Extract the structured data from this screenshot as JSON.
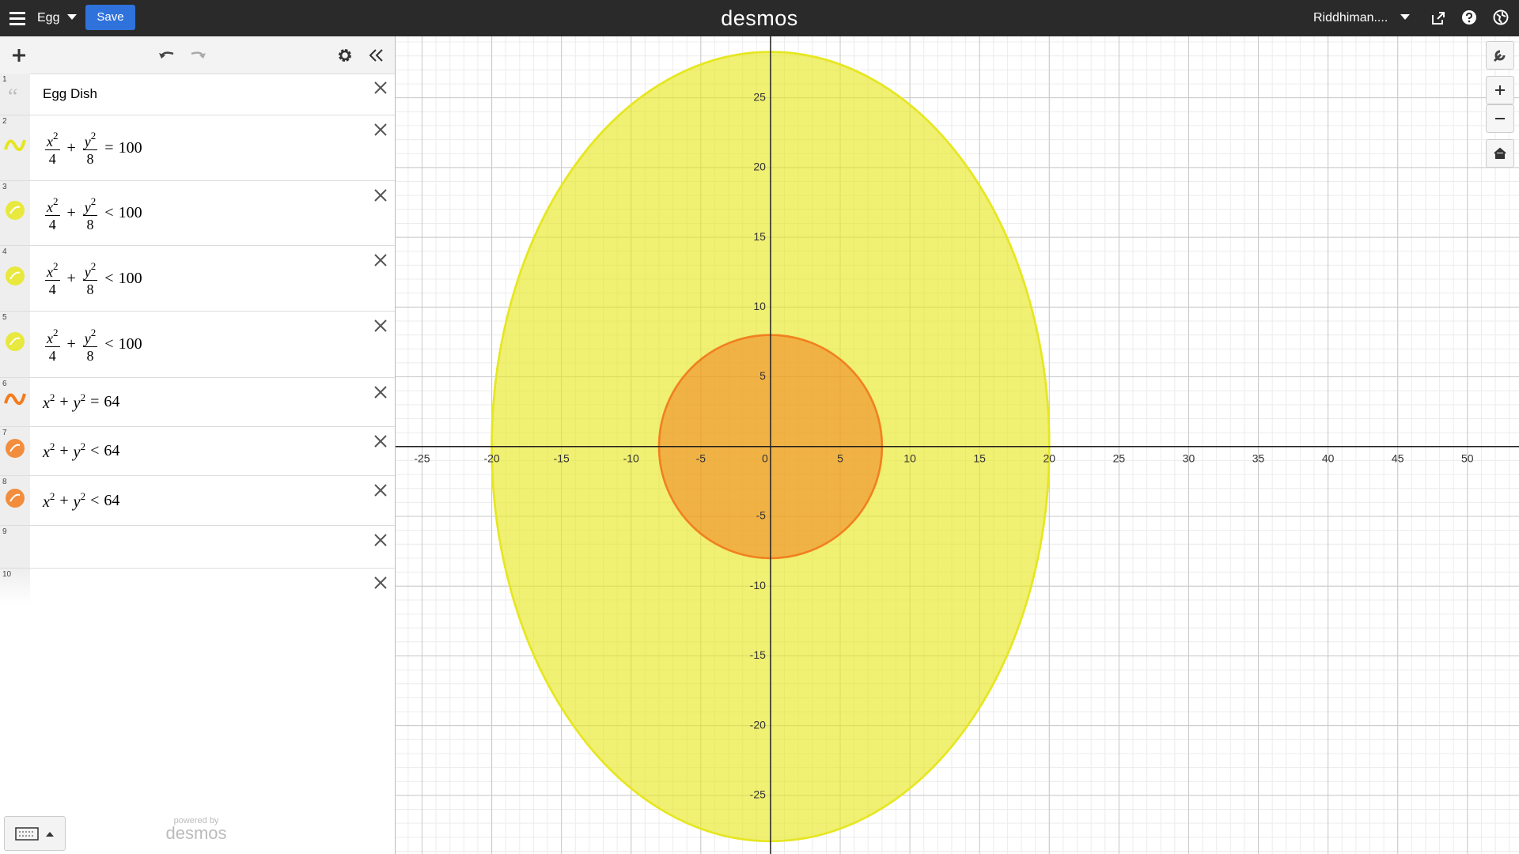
{
  "header": {
    "title": "Egg",
    "save": "Save",
    "logo": "desmos",
    "user": "Riddhiman...."
  },
  "expressions": [
    {
      "index": "1",
      "text": "Egg Dish"
    },
    {
      "index": "2",
      "color": "#e6e61e",
      "terms": [
        {
          "base": "x",
          "pow": "2",
          "den": "4"
        },
        {
          "base": "y",
          "pow": "2",
          "den": "8"
        }
      ],
      "plus": "+",
      "op": "=",
      "rhs": "100"
    },
    {
      "index": "3",
      "color": "#e6e61e",
      "terms": [
        {
          "base": "x",
          "pow": "2",
          "den": "4"
        },
        {
          "base": "y",
          "pow": "2",
          "den": "8"
        }
      ],
      "plus": "+",
      "op": "<",
      "rhs": "100"
    },
    {
      "index": "4",
      "color": "#e6e61e",
      "terms": [
        {
          "base": "x",
          "pow": "2",
          "den": "4"
        },
        {
          "base": "y",
          "pow": "2",
          "den": "8"
        }
      ],
      "plus": "+",
      "op": "<",
      "rhs": "100"
    },
    {
      "index": "5",
      "color": "#e6e61e",
      "terms": [
        {
          "base": "x",
          "pow": "2",
          "den": "4"
        },
        {
          "base": "y",
          "pow": "2",
          "den": "8"
        }
      ],
      "plus": "+",
      "op": "<",
      "rhs": "100"
    },
    {
      "index": "6",
      "color": "#f27b1d",
      "terms": [
        {
          "base": "x",
          "pow": "2"
        },
        {
          "base": "y",
          "pow": "2"
        }
      ],
      "plus": "+",
      "op": "=",
      "rhs": "64"
    },
    {
      "index": "7",
      "color": "#f27b1d",
      "terms": [
        {
          "base": "x",
          "pow": "2"
        },
        {
          "base": "y",
          "pow": "2"
        }
      ],
      "plus": "+",
      "op": "<",
      "rhs": "64"
    },
    {
      "index": "8",
      "color": "#f27b1d",
      "terms": [
        {
          "base": "x",
          "pow": "2"
        },
        {
          "base": "y",
          "pow": "2"
        }
      ],
      "plus": "+",
      "op": "<",
      "rhs": "64"
    },
    {
      "index": "9"
    },
    {
      "index": "10"
    }
  ],
  "graph": {
    "xlim": [
      -26.9,
      53.7
    ],
    "ylim": [
      -29.2,
      29.4
    ],
    "xticks": [
      -25,
      -20,
      -15,
      -10,
      -5,
      0,
      5,
      10,
      15,
      20,
      25,
      30,
      35,
      40,
      45,
      50
    ],
    "yticks": [
      -25,
      -20,
      -15,
      -10,
      -5,
      5,
      10,
      15,
      20,
      25
    ]
  },
  "footer": {
    "powered": "powered by",
    "logo": "desmos"
  }
}
